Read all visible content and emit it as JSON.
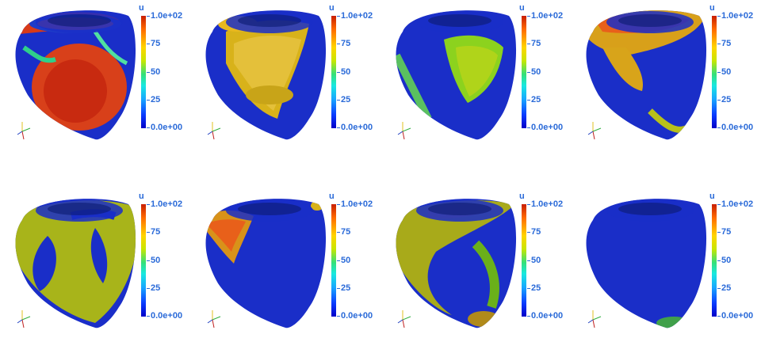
{
  "colors": {
    "label": "#2a6ad8",
    "background": "#ffffff"
  },
  "colorbar": {
    "title": "u",
    "max_label": "1.0e+02",
    "min_label": "0.0e+00",
    "ticks": [
      "75",
      "50",
      "25"
    ]
  },
  "panels": [
    {
      "id": 1,
      "pattern": "mostly-red"
    },
    {
      "id": 2,
      "pattern": "yellow-band"
    },
    {
      "id": 3,
      "pattern": "green-center"
    },
    {
      "id": 4,
      "pattern": "orange-top"
    },
    {
      "id": 5,
      "pattern": "yellow-broad"
    },
    {
      "id": 6,
      "pattern": "orange-spot"
    },
    {
      "id": 7,
      "pattern": "yellow-left"
    },
    {
      "id": 8,
      "pattern": "mostly-blue"
    }
  ]
}
